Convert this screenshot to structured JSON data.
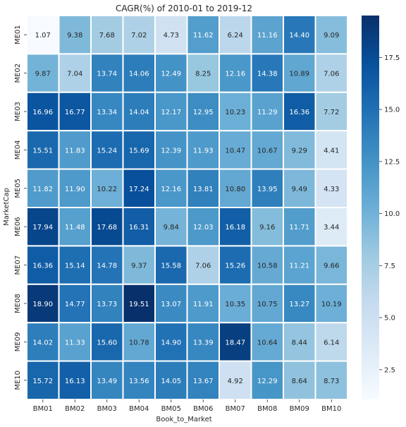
{
  "chart_data": {
    "type": "heatmap",
    "title": "CAGR(%) of 2010-01 to 2019-12",
    "xlabel": "Book_to_Market",
    "ylabel": "MarketCap",
    "x_categories": [
      "BM01",
      "BM02",
      "BM03",
      "BM04",
      "BM05",
      "BM06",
      "BM07",
      "BM08",
      "BM09",
      "BM10"
    ],
    "y_categories": [
      "ME01",
      "ME02",
      "ME03",
      "ME04",
      "ME05",
      "ME06",
      "ME07",
      "ME08",
      "ME09",
      "ME10"
    ],
    "values": [
      [
        1.07,
        9.38,
        7.68,
        7.02,
        4.73,
        11.62,
        6.24,
        11.16,
        14.4,
        9.09
      ],
      [
        9.87,
        7.04,
        13.74,
        14.06,
        12.49,
        8.25,
        12.16,
        14.38,
        10.89,
        7.06
      ],
      [
        16.96,
        16.77,
        13.34,
        14.04,
        12.17,
        12.95,
        10.23,
        11.29,
        16.36,
        7.72
      ],
      [
        15.51,
        11.83,
        15.24,
        15.69,
        12.39,
        11.93,
        10.47,
        10.67,
        9.29,
        4.41
      ],
      [
        11.82,
        11.9,
        10.22,
        17.24,
        12.16,
        13.81,
        10.8,
        13.95,
        9.49,
        4.33
      ],
      [
        17.94,
        11.48,
        17.68,
        16.31,
        9.84,
        12.03,
        16.18,
        9.16,
        11.71,
        3.44
      ],
      [
        16.36,
        15.14,
        14.78,
        9.37,
        15.58,
        7.06,
        15.26,
        10.58,
        11.21,
        9.66
      ],
      [
        18.9,
        14.77,
        13.73,
        19.51,
        13.07,
        11.91,
        10.35,
        10.75,
        13.27,
        10.19
      ],
      [
        14.02,
        11.33,
        15.6,
        10.78,
        14.9,
        13.39,
        18.47,
        10.64,
        8.44,
        6.14
      ],
      [
        15.72,
        16.13,
        13.49,
        13.56,
        14.05,
        13.67,
        4.92,
        12.29,
        8.64,
        8.73
      ]
    ],
    "colormap": "Blues",
    "vmin": 1.07,
    "vmax": 19.51,
    "colorbar_ticks": [
      2.5,
      5.0,
      7.5,
      10.0,
      12.5,
      15.0,
      17.5
    ],
    "colorbar_tick_labels": [
      "2.5",
      "5.0",
      "7.5",
      "10.0",
      "12.5",
      "15.0",
      "17.5"
    ],
    "cell_border_color": "#ffffff"
  }
}
